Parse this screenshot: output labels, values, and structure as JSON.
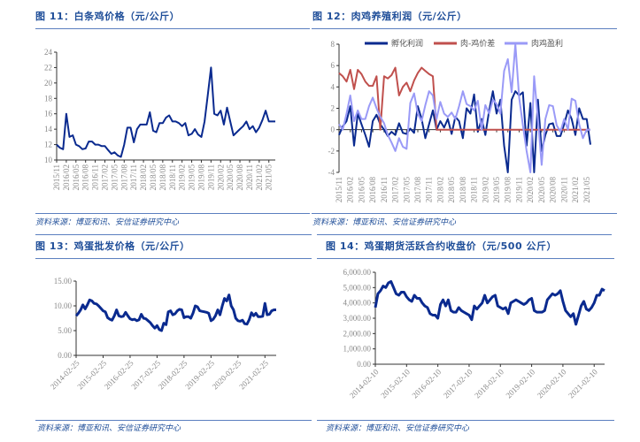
{
  "colors": {
    "dark_blue": "#0A2A8F",
    "red": "#C0504D",
    "light_blue": "#9A9AF7",
    "title_blue": "#1F4E99",
    "rule": "#5B7FBF"
  },
  "chart_data": [
    {
      "type": "line",
      "title": "图 11：白条鸡价格（元/公斤）",
      "source": "资料来源：博亚和讯、安信证券研究中心",
      "ylim": [
        10,
        24
      ],
      "y_ticks": [
        "10",
        "12",
        "14",
        "16",
        "18",
        "20",
        "22",
        "24"
      ],
      "x_ticks": [
        "2015/11",
        "2016/02",
        "2016/05",
        "2016/08",
        "2016/11",
        "2017/02",
        "2017/05",
        "2017/08",
        "2017/11",
        "2018/02",
        "2018/05",
        "2018/08",
        "2018/11",
        "2019/02",
        "2019/05",
        "2019/08",
        "2019/11",
        "2020/02",
        "2020/05",
        "2020/08",
        "2020/11",
        "2021/02",
        "2021/05"
      ],
      "x": [
        "2015-11",
        "2015-12",
        "2016-01",
        "2016-02",
        "2016-03",
        "2016-04",
        "2016-05",
        "2016-06",
        "2016-07",
        "2016-08",
        "2016-09",
        "2016-10",
        "2016-11",
        "2016-12",
        "2017-01",
        "2017-02",
        "2017-03",
        "2017-04",
        "2017-05",
        "2017-06",
        "2017-07",
        "2017-08",
        "2017-09",
        "2017-10",
        "2017-11",
        "2017-12",
        "2018-01",
        "2018-02",
        "2018-03",
        "2018-04",
        "2018-05",
        "2018-06",
        "2018-07",
        "2018-08",
        "2018-09",
        "2018-10",
        "2018-11",
        "2018-12",
        "2019-01",
        "2019-02",
        "2019-03",
        "2019-04",
        "2019-05",
        "2019-06",
        "2019-07",
        "2019-08",
        "2019-09",
        "2019-10",
        "2019-11",
        "2019-12",
        "2020-01",
        "2020-02",
        "2020-03",
        "2020-04",
        "2020-05",
        "2020-06",
        "2020-07",
        "2020-08",
        "2020-09",
        "2020-10",
        "2020-11",
        "2020-12",
        "2021-01",
        "2021-02",
        "2021-03",
        "2021-04",
        "2021-05",
        "2021-06",
        "2021-07"
      ],
      "series": [
        {
          "color": "#0A2A8F",
          "values": [
            12,
            11.6,
            11.4,
            16,
            13,
            13.2,
            12,
            11.8,
            11.4,
            11.5,
            12.4,
            12.4,
            12,
            12,
            11.8,
            11.8,
            11.3,
            10.8,
            11,
            10.6,
            10.4,
            12,
            14.2,
            14.2,
            12.3,
            14,
            14.6,
            14.6,
            14.6,
            16.2,
            13.8,
            13.6,
            14.8,
            14.8,
            15.5,
            15.8,
            15,
            15,
            14.8,
            14.4,
            14.8,
            13.2,
            13.4,
            14,
            13.3,
            13,
            15,
            18.4,
            22,
            16,
            15.8,
            16.4,
            14.6,
            16.8,
            15,
            13.2,
            13.6,
            14,
            14.4,
            15,
            14,
            14.4,
            13.6,
            14.2,
            15.2,
            16.4,
            15,
            15,
            15
          ]
        }
      ]
    },
    {
      "type": "line",
      "title": "图 12：肉鸡养殖利润（元/公斤）",
      "source": "资料来源：博亚和讯、安信证券研究中心",
      "ylim": [
        -4,
        8
      ],
      "y_ticks": [
        "-4",
        "-2",
        "0",
        "2",
        "4",
        "6",
        "8"
      ],
      "legend": "top",
      "x_ticks": [
        "2015/11",
        "2016/02",
        "2016/05",
        "2016/08",
        "2016/11",
        "2017/02",
        "2017/05",
        "2017/08",
        "2017/11",
        "2018/02",
        "2018/05",
        "2018/08",
        "2018/11",
        "2019/02",
        "2019/05",
        "2019/08",
        "2019/11",
        "2020/02",
        "2020/05",
        "2020/08",
        "2020/11",
        "2021/02",
        "2021/05"
      ],
      "x": [
        "2015-11",
        "2015-12",
        "2016-01",
        "2016-02",
        "2016-03",
        "2016-04",
        "2016-05",
        "2016-06",
        "2016-07",
        "2016-08",
        "2016-09",
        "2016-10",
        "2016-11",
        "2016-12",
        "2017-01",
        "2017-02",
        "2017-03",
        "2017-04",
        "2017-05",
        "2017-06",
        "2017-07",
        "2017-08",
        "2017-09",
        "2017-10",
        "2017-11",
        "2017-12",
        "2018-01",
        "2018-02",
        "2018-03",
        "2018-04",
        "2018-05",
        "2018-06",
        "2018-07",
        "2018-08",
        "2018-09",
        "2018-10",
        "2018-11",
        "2018-12",
        "2019-01",
        "2019-02",
        "2019-03",
        "2019-04",
        "2019-05",
        "2019-06",
        "2019-07",
        "2019-08",
        "2019-09",
        "2019-10",
        "2019-11",
        "2019-12",
        "2020-01",
        "2020-02",
        "2020-03",
        "2020-04",
        "2020-05",
        "2020-06",
        "2020-07",
        "2020-08",
        "2020-09",
        "2020-10",
        "2020-11",
        "2020-12",
        "2021-01",
        "2021-02",
        "2021-03",
        "2021-04",
        "2021-05",
        "2021-06"
      ],
      "series": [
        {
          "name": "孵化利润",
          "color": "#0A2A8F",
          "values": [
            -0.5,
            0.3,
            0.8,
            2.2,
            -1.5,
            1.5,
            0.5,
            -0.5,
            -1.6,
            0.8,
            1.4,
            0.5,
            0,
            -0.6,
            -0.2,
            -0.5,
            0.6,
            -0.3,
            -0.4,
            0.1,
            -0.3,
            2.2,
            1,
            -0.8,
            0.5,
            1.8,
            0,
            0.8,
            0.2,
            1,
            -0.4,
            1.2,
            0.8,
            -0.8,
            2,
            1.5,
            3.3,
            -0.2,
            1,
            -0.5,
            1.8,
            3.6,
            1.5,
            2.8,
            -1.5,
            -4,
            2.8,
            3.6,
            3.2,
            3.5,
            -1.5,
            2.5,
            -4,
            2.8,
            -2,
            -0.5,
            0.5,
            0.6,
            -0.6,
            -0.6,
            0.5,
            1.8,
            1,
            -0.5,
            2,
            1,
            1,
            -1.4
          ]
        },
        {
          "name": "肉-鸡价差",
          "color": "#C0504D",
          "values": [
            5.3,
            5,
            4.5,
            5.6,
            3.8,
            5.6,
            5.2,
            4.5,
            4.1,
            4.1,
            5,
            0,
            5,
            4.8,
            5.1,
            5.8,
            3.2,
            4,
            4.4,
            3.6,
            4.6,
            5.3,
            5.8,
            5.5,
            5.2,
            5.0,
            0,
            0,
            0,
            0,
            0,
            0,
            0,
            0,
            0,
            0,
            0,
            0,
            0,
            0,
            0,
            0,
            0,
            0,
            0,
            0,
            0,
            0,
            0,
            0,
            0,
            0,
            0,
            0,
            0,
            0,
            0,
            0,
            0,
            0,
            0,
            0,
            0,
            0,
            0,
            0,
            0,
            0
          ]
        },
        {
          "name": "肉鸡盈利",
          "color": "#9A9AF7",
          "values": [
            0.5,
            0,
            1.5,
            3.2,
            0.8,
            1.8,
            1,
            1,
            2.2,
            3,
            2,
            1.2,
            0.6,
            -0.5,
            -1.2,
            -2,
            -0.8,
            -1.6,
            -1.8,
            2.5,
            3.4,
            1.5,
            0.8,
            2.3,
            3.6,
            3.2,
            1,
            2.6,
            1.5,
            1.2,
            1.6,
            1,
            2.2,
            3.6,
            2.4,
            2.2,
            1.8,
            2.7,
            0,
            2.3,
            1.5,
            2.8,
            2.4,
            1.5,
            5.5,
            6.6,
            3.5,
            8,
            3,
            0.4,
            -2,
            -4,
            5,
            1,
            -3.3,
            1,
            2.3,
            2.2,
            0.4,
            -0.2,
            1,
            0,
            2.9,
            2.7,
            0.5,
            -0.8,
            0,
            0
          ]
        }
      ]
    },
    {
      "type": "line",
      "title": "图 13：鸡蛋批发价格（元/公斤）",
      "source": "资料来源：博亚和讯、安信证券研究中心",
      "ylim": [
        0,
        15
      ],
      "y_ticks": [
        "0.00",
        "5.00",
        "10.00",
        "15.00"
      ],
      "x_ticks": [
        "2014-02-25",
        "2015-02-25",
        "2016-02-25",
        "2017-02-25",
        "2018-02-25",
        "2019-02-25",
        "2020-02-25",
        "2021-02-25"
      ],
      "x": [
        "2014-02",
        "2014-03",
        "2014-04",
        "2014-05",
        "2014-06",
        "2014-07",
        "2014-08",
        "2014-09",
        "2014-10",
        "2014-11",
        "2014-12",
        "2015-01",
        "2015-02",
        "2015-03",
        "2015-04",
        "2015-05",
        "2015-06",
        "2015-07",
        "2015-08",
        "2015-09",
        "2015-10",
        "2015-11",
        "2015-12",
        "2016-01",
        "2016-02",
        "2016-03",
        "2016-04",
        "2016-05",
        "2016-06",
        "2016-07",
        "2016-08",
        "2016-09",
        "2016-10",
        "2016-11",
        "2016-12",
        "2017-01",
        "2017-02",
        "2017-03",
        "2017-04",
        "2017-05",
        "2017-06",
        "2017-07",
        "2017-08",
        "2017-09",
        "2017-10",
        "2017-11",
        "2017-12",
        "2018-01",
        "2018-02",
        "2018-03",
        "2018-04",
        "2018-05",
        "2018-06",
        "2018-07",
        "2018-08",
        "2018-09",
        "2018-10",
        "2018-11",
        "2018-12",
        "2019-01",
        "2019-02",
        "2019-03",
        "2019-04",
        "2019-05",
        "2019-06",
        "2019-07",
        "2019-08",
        "2019-09",
        "2019-10",
        "2019-11",
        "2019-12",
        "2020-01",
        "2020-02",
        "2020-03",
        "2020-04",
        "2020-05",
        "2020-06",
        "2020-07",
        "2020-08",
        "2020-09",
        "2020-10",
        "2020-11",
        "2020-12",
        "2021-01",
        "2021-02",
        "2021-03",
        "2021-04",
        "2021-05",
        "2021-06",
        "2021-07"
      ],
      "series": [
        {
          "color": "#0A2A8F",
          "values": [
            8,
            8.5,
            9.2,
            10.2,
            9.4,
            10.2,
            11.2,
            11,
            10.5,
            10.4,
            10,
            9.5,
            9,
            8.8,
            7.6,
            7.3,
            7.1,
            8,
            9.2,
            8,
            7.8,
            7.9,
            8.7,
            8.0,
            7.4,
            7.2,
            7.3,
            7.0,
            7.2,
            8.3,
            7.5,
            7.4,
            7.0,
            6.6,
            6.0,
            5.5,
            6.0,
            5.2,
            5.0,
            6.5,
            6.2,
            8.8,
            9.0,
            8.2,
            8.4,
            9.0,
            9.3,
            9.2,
            7.6,
            7.8,
            7.8,
            7.5,
            8.5,
            10,
            9.8,
            9,
            8.9,
            8.8,
            8.7,
            8.5,
            7.0,
            7.3,
            8.0,
            9.2,
            8.2,
            10,
            11.5,
            11,
            12.2,
            10,
            9.2,
            7.5,
            7.0,
            6.9,
            7.1,
            6.4,
            6.3,
            7.2,
            8.6,
            8.0,
            8.5,
            7.8,
            7.8,
            7.9,
            10.5,
            8.2,
            8.3,
            9.0,
            9.2,
            9.2
          ]
        }
      ]
    },
    {
      "type": "line",
      "title": "图 14：鸡蛋期货活跃合约收盘价（元/500 公斤）",
      "source": "资料来源：博亚和讯、安信证券研究中心",
      "ylim": [
        0,
        6000
      ],
      "y_ticks": [
        "0.00",
        "1,000.00",
        "2,000.00",
        "3,000.00",
        "4,000.00",
        "5,000.00",
        "6,000.00"
      ],
      "x_ticks": [
        "2014-02-10",
        "2015-02-10",
        "2016-02-10",
        "2017-02-10",
        "2018-02-10",
        "2019-02-10",
        "2020-02-10",
        "2021-02-10"
      ],
      "x": [
        "2014-02",
        "2014-03",
        "2014-04",
        "2014-05",
        "2014-06",
        "2014-07",
        "2014-08",
        "2014-09",
        "2014-10",
        "2014-11",
        "2014-12",
        "2015-01",
        "2015-02",
        "2015-03",
        "2015-04",
        "2015-05",
        "2015-06",
        "2015-07",
        "2015-08",
        "2015-09",
        "2015-10",
        "2015-11",
        "2015-12",
        "2016-01",
        "2016-02",
        "2016-03",
        "2016-04",
        "2016-05",
        "2016-06",
        "2016-07",
        "2016-08",
        "2016-09",
        "2016-10",
        "2016-11",
        "2016-12",
        "2017-01",
        "2017-02",
        "2017-03",
        "2017-04",
        "2017-05",
        "2017-06",
        "2017-07",
        "2017-08",
        "2017-09",
        "2017-10",
        "2017-11",
        "2017-12",
        "2018-01",
        "2018-02",
        "2018-03",
        "2018-04",
        "2018-05",
        "2018-06",
        "2018-07",
        "2018-08",
        "2018-09",
        "2018-10",
        "2018-11",
        "2018-12",
        "2019-01",
        "2019-02",
        "2019-03",
        "2019-04",
        "2019-05",
        "2019-06",
        "2019-07",
        "2019-08",
        "2019-09",
        "2019-10",
        "2019-11",
        "2019-12",
        "2020-01",
        "2020-02",
        "2020-03",
        "2020-04",
        "2020-05",
        "2020-06",
        "2020-07",
        "2020-08",
        "2020-09",
        "2020-10",
        "2020-11",
        "2020-12",
        "2021-01",
        "2021-02",
        "2021-03",
        "2021-04",
        "2021-05",
        "2021-06"
      ],
      "series": [
        {
          "color": "#0A2A8F",
          "values": [
            3700,
            4600,
            4800,
            5100,
            5000,
            5300,
            5400,
            5000,
            4600,
            4500,
            4700,
            4700,
            4400,
            4200,
            4100,
            4500,
            4300,
            4300,
            4000,
            3800,
            3700,
            3300,
            3200,
            3200,
            3000,
            3900,
            4200,
            3800,
            4200,
            3500,
            3400,
            3400,
            3700,
            3500,
            3400,
            3300,
            3200,
            2900,
            3800,
            3600,
            3800,
            4000,
            4500,
            4000,
            4200,
            4400,
            4500,
            3800,
            3700,
            3600,
            3700,
            3300,
            4000,
            4100,
            4200,
            4100,
            4000,
            3900,
            4000,
            4200,
            4300,
            3500,
            3400,
            3400,
            3400,
            3500,
            4200,
            4400,
            4600,
            4500,
            4600,
            4800,
            4100,
            3500,
            3300,
            3100,
            3300,
            2600,
            3200,
            3800,
            4100,
            3600,
            3500,
            3700,
            4000,
            4500,
            4500,
            4900,
            4800
          ]
        }
      ]
    }
  ]
}
